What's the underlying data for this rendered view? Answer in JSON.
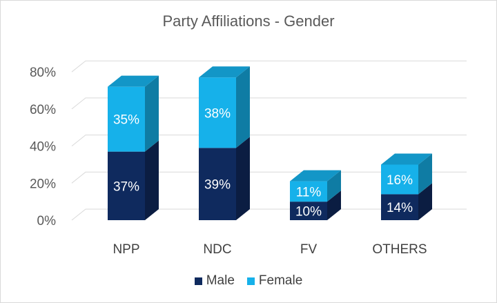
{
  "chart_data": {
    "type": "bar",
    "stacked": true,
    "style": "3d-column",
    "title": "Party Affiliations - Gender",
    "xlabel": "",
    "ylabel": "",
    "ylim": [
      0,
      80
    ],
    "yticks": [
      0,
      20,
      40,
      60,
      80
    ],
    "ytick_labels": [
      "0%",
      "20%",
      "40%",
      "60%",
      "80%"
    ],
    "grid": true,
    "legend_position": "bottom",
    "categories": [
      "NPP",
      "NDC",
      "FV",
      "OTHERS"
    ],
    "series": [
      {
        "name": "Male",
        "color": "#0f2a5e",
        "values": [
          37,
          39,
          10,
          14
        ],
        "labels": [
          "37%",
          "39%",
          "10%",
          "14%"
        ]
      },
      {
        "name": "Female",
        "color": "#16b1ea",
        "values": [
          35,
          38,
          11,
          16
        ],
        "labels": [
          "35%",
          "38%",
          "11%",
          "16%"
        ]
      }
    ]
  }
}
